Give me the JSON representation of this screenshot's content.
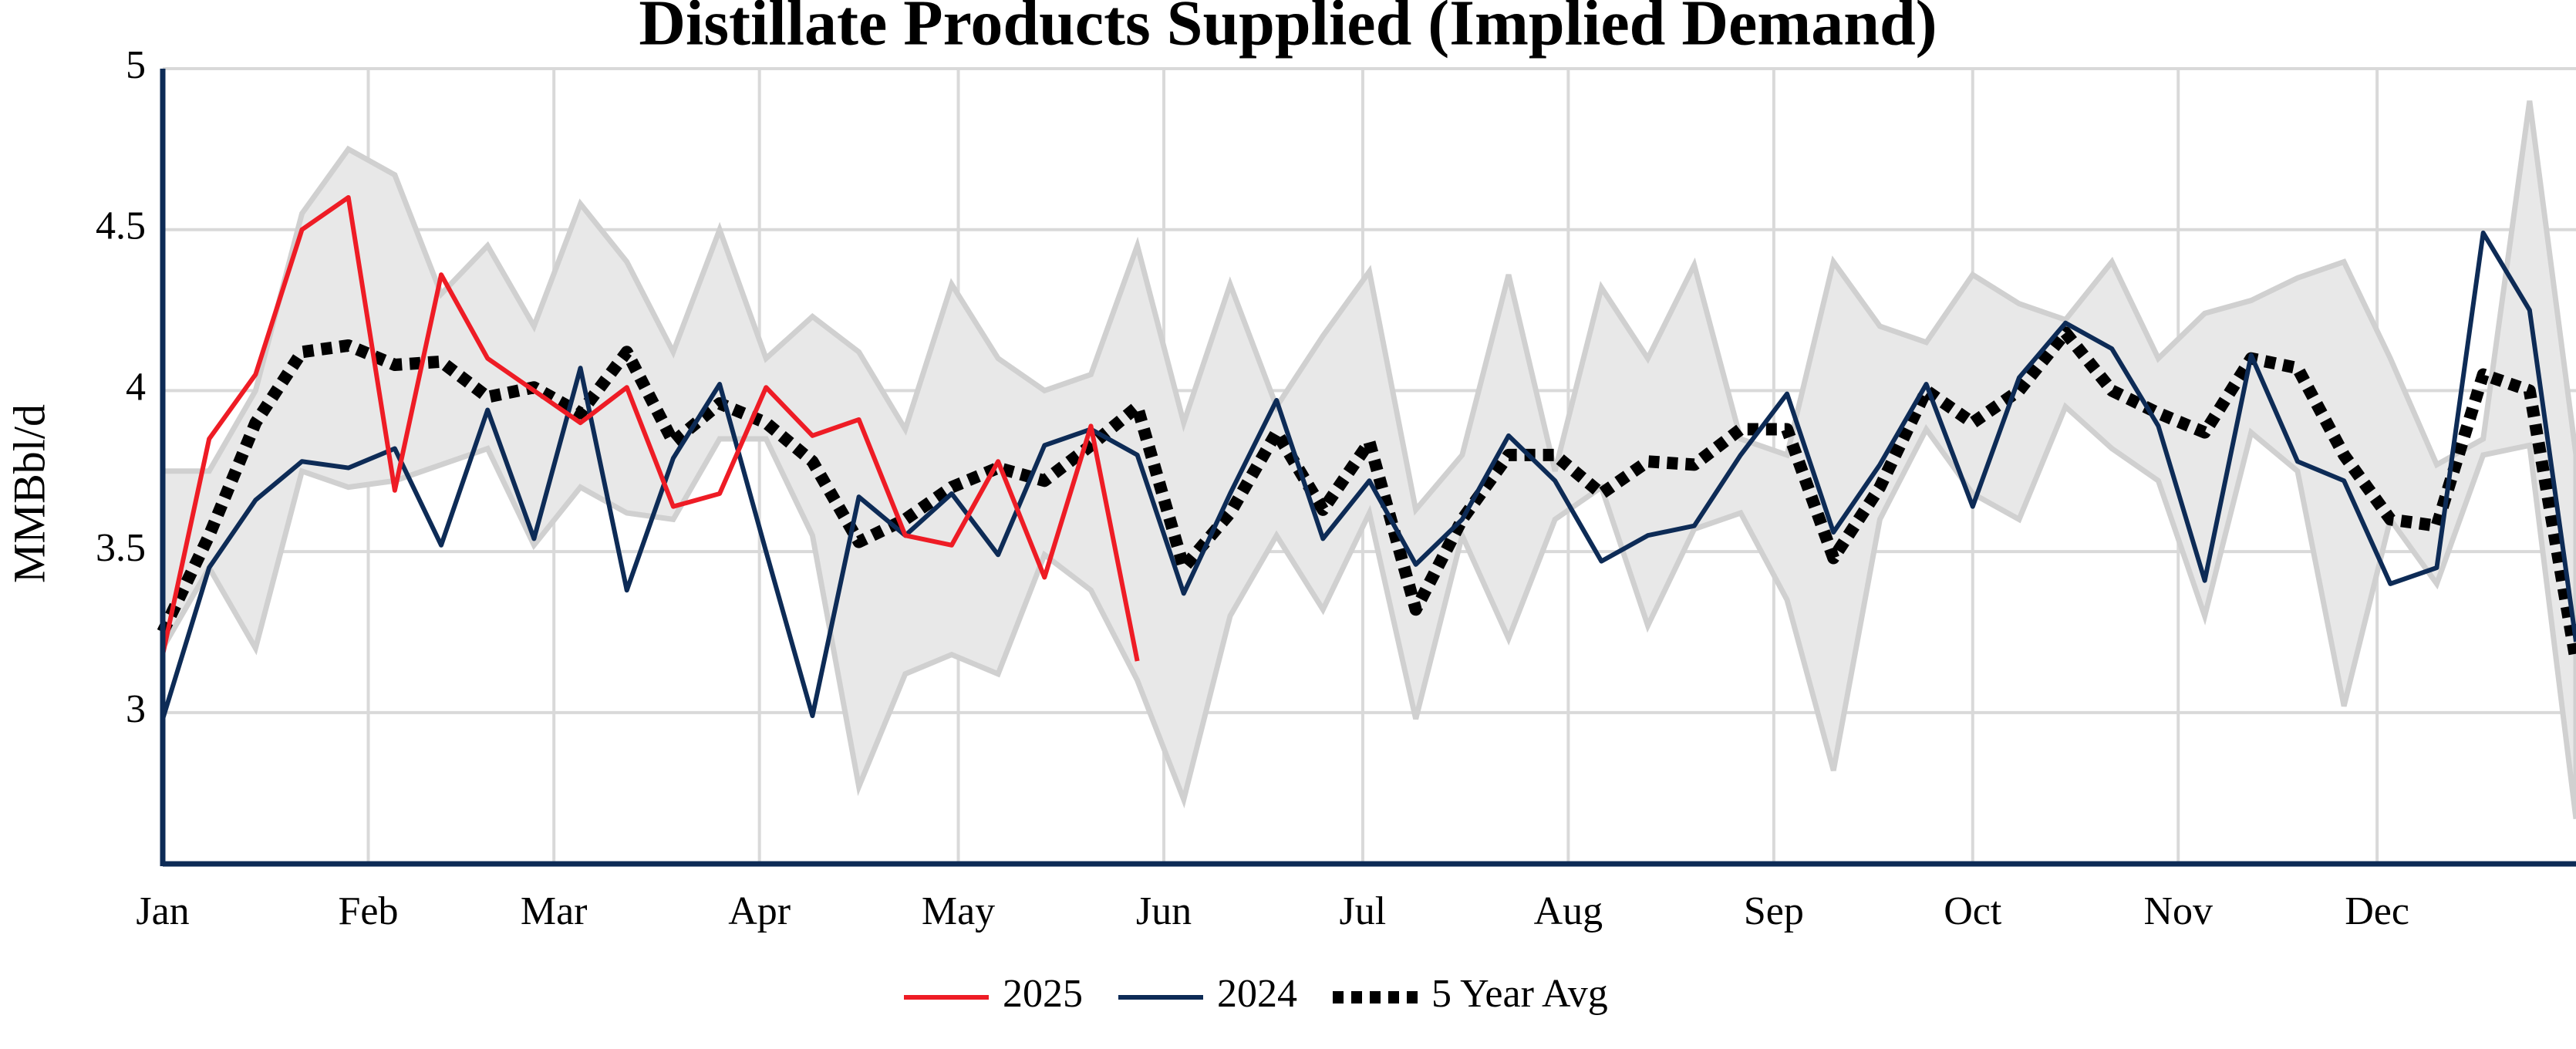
{
  "chart_data": {
    "type": "line",
    "title": "Distillate Products Supplied (Implied Demand)",
    "y_label": "MMBbl/d",
    "x": [
      0,
      7,
      14,
      21,
      28,
      35,
      42,
      49,
      56,
      63,
      70,
      77,
      84,
      91,
      98,
      105,
      112,
      119,
      126,
      133,
      140,
      147,
      154,
      161,
      168,
      175,
      182,
      189,
      196,
      203,
      210,
      217,
      224,
      231,
      238,
      245,
      252,
      259,
      266,
      273,
      280,
      287,
      294,
      301,
      308,
      315,
      322,
      329,
      336,
      343,
      350,
      357,
      364
    ],
    "xlim": [
      0,
      364
    ],
    "xticks": [
      {
        "value": 0,
        "label": "Jan"
      },
      {
        "value": 31,
        "label": "Feb"
      },
      {
        "value": 59,
        "label": "Mar"
      },
      {
        "value": 90,
        "label": "Apr"
      },
      {
        "value": 120,
        "label": "May"
      },
      {
        "value": 151,
        "label": "Jun"
      },
      {
        "value": 181,
        "label": "Jul"
      },
      {
        "value": 212,
        "label": "Aug"
      },
      {
        "value": 243,
        "label": "Sep"
      },
      {
        "value": 273,
        "label": "Oct"
      },
      {
        "value": 304,
        "label": "Nov"
      },
      {
        "value": 334,
        "label": "Dec"
      }
    ],
    "ylim": [
      2.53,
      5
    ],
    "yticks": [
      3,
      3.5,
      4,
      4.5,
      5
    ],
    "grid": true,
    "range": {
      "color": "#e8e8e8",
      "upper": [
        3.75,
        3.75,
        4.0,
        4.55,
        4.75,
        4.67,
        4.3,
        4.45,
        4.2,
        4.58,
        4.4,
        4.12,
        4.5,
        4.1,
        4.23,
        4.12,
        3.88,
        4.33,
        4.1,
        4.0,
        4.05,
        4.45,
        3.9,
        4.33,
        3.95,
        4.17,
        4.37,
        3.63,
        3.8,
        4.36,
        3.75,
        4.32,
        4.1,
        4.39,
        3.85,
        3.8,
        4.4,
        4.2,
        4.15,
        4.36,
        4.27,
        4.22,
        4.4,
        4.1,
        4.24,
        4.28,
        4.35,
        4.4,
        4.1,
        3.77,
        3.85,
        4.9,
        3.8
      ],
      "lower": [
        3.2,
        3.45,
        3.2,
        3.75,
        3.7,
        3.72,
        3.77,
        3.82,
        3.52,
        3.7,
        3.62,
        3.6,
        3.85,
        3.85,
        3.55,
        2.77,
        3.12,
        3.18,
        3.12,
        3.49,
        3.38,
        3.1,
        2.73,
        3.3,
        3.55,
        3.32,
        3.62,
        2.98,
        3.55,
        3.23,
        3.6,
        3.7,
        3.27,
        3.57,
        3.62,
        3.35,
        2.82,
        3.6,
        3.88,
        3.68,
        3.6,
        3.95,
        3.82,
        3.72,
        3.3,
        3.87,
        3.75,
        3.02,
        3.6,
        3.4,
        3.8,
        3.83,
        2.67
      ]
    },
    "series": [
      {
        "name": "2025",
        "color": "#ee1c25",
        "style": "solid",
        "values": [
          3.18,
          3.85,
          4.05,
          4.5,
          4.6,
          3.69,
          4.36,
          4.1,
          4.0,
          3.9,
          4.01,
          3.64,
          3.68,
          4.01,
          3.86,
          3.91,
          3.55,
          3.52,
          3.78,
          3.42,
          3.89,
          3.16,
          null,
          null,
          null,
          null,
          null,
          null,
          null,
          null,
          null,
          null,
          null,
          null,
          null,
          null,
          null,
          null,
          null,
          null,
          null,
          null,
          null,
          null,
          null,
          null,
          null,
          null,
          null,
          null,
          null,
          null,
          null
        ]
      },
      {
        "name": "2024",
        "color": "#0d2b56",
        "style": "solid",
        "values": [
          2.98,
          3.45,
          3.66,
          3.78,
          3.76,
          3.82,
          3.52,
          3.94,
          3.54,
          4.07,
          3.38,
          3.79,
          4.02,
          3.5,
          2.99,
          3.67,
          3.55,
          3.68,
          3.49,
          3.83,
          3.88,
          3.8,
          3.37,
          3.68,
          3.97,
          3.54,
          3.72,
          3.46,
          3.6,
          3.86,
          3.72,
          3.47,
          3.55,
          3.58,
          3.8,
          3.99,
          3.56,
          3.77,
          4.02,
          3.64,
          4.04,
          4.21,
          4.13,
          3.89,
          3.41,
          4.11,
          3.78,
          3.72,
          3.4,
          3.45,
          4.49,
          4.25,
          3.22
        ]
      },
      {
        "name": "5 Year Avg",
        "color": "#000000",
        "style": "dotted",
        "values": [
          3.25,
          3.55,
          3.9,
          4.12,
          4.14,
          4.08,
          4.09,
          3.98,
          4.01,
          3.93,
          4.12,
          3.84,
          3.96,
          3.9,
          3.78,
          3.53,
          3.6,
          3.7,
          3.76,
          3.72,
          3.83,
          3.95,
          3.45,
          3.62,
          3.87,
          3.63,
          3.84,
          3.32,
          3.6,
          3.8,
          3.8,
          3.68,
          3.78,
          3.77,
          3.88,
          3.88,
          3.48,
          3.7,
          4.0,
          3.9,
          4.0,
          4.18,
          4.0,
          3.93,
          3.87,
          4.1,
          4.07,
          3.8,
          3.6,
          3.58,
          4.05,
          4.0,
          3.16
        ]
      }
    ],
    "axis_color": "#0d2b56",
    "grid_color": "#d9d9d9"
  }
}
